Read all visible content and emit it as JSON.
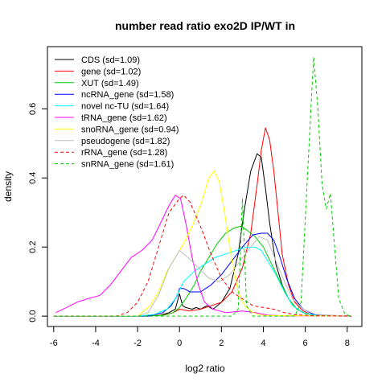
{
  "chart_data": {
    "type": "line",
    "title": "number read ratio exo2D IP/WT in",
    "xlabel": "log2 ratio",
    "ylabel": "density",
    "xlim": [
      -6.3,
      8.7
    ],
    "ylim": [
      -0.03,
      0.78
    ],
    "x_ticks": [
      -6,
      -4,
      -2,
      0,
      2,
      4,
      6,
      8
    ],
    "y_ticks": [
      0.0,
      0.2,
      0.4,
      0.6
    ],
    "x_tick_labels": [
      "-6",
      "-4",
      "-2",
      "0",
      "2",
      "4",
      "6",
      "8"
    ],
    "y_tick_labels": [
      "0.0",
      "0.2",
      "0.4",
      "0.6"
    ],
    "grid": false,
    "legend_position": "top-left",
    "series": [
      {
        "name": "CDS (sd=1.09)",
        "color": "#000000",
        "dash": "solid",
        "points": [
          [
            -6,
            0
          ],
          [
            -2,
            0
          ],
          [
            -1,
            0.002
          ],
          [
            -0.5,
            0.01
          ],
          [
            -0.2,
            0.02
          ],
          [
            0,
            0.065
          ],
          [
            0.15,
            0.03
          ],
          [
            0.3,
            0.025
          ],
          [
            0.6,
            0.02
          ],
          [
            0.8,
            0.025
          ],
          [
            1,
            0.02
          ],
          [
            1.3,
            0.03
          ],
          [
            1.6,
            0.02
          ],
          [
            2,
            0.04
          ],
          [
            2.4,
            0.08
          ],
          [
            2.8,
            0.18
          ],
          [
            3.1,
            0.31
          ],
          [
            3.4,
            0.42
          ],
          [
            3.7,
            0.47
          ],
          [
            3.9,
            0.46
          ],
          [
            4.1,
            0.37
          ],
          [
            4.3,
            0.27
          ],
          [
            4.6,
            0.15
          ],
          [
            4.9,
            0.09
          ],
          [
            5.2,
            0.05
          ],
          [
            5.6,
            0.02
          ],
          [
            6,
            0.008
          ],
          [
            6.5,
            0.002
          ],
          [
            8.2,
            0
          ]
        ]
      },
      {
        "name": "gene (sd=1.02)",
        "color": "#ff0000",
        "dash": "solid",
        "points": [
          [
            -6,
            0
          ],
          [
            -2,
            0
          ],
          [
            -0.8,
            0.003
          ],
          [
            -0.3,
            0.01
          ],
          [
            0,
            0.02
          ],
          [
            0.5,
            0.015
          ],
          [
            1,
            0.02
          ],
          [
            1.5,
            0.03
          ],
          [
            2,
            0.04
          ],
          [
            2.5,
            0.07
          ],
          [
            3,
            0.14
          ],
          [
            3.4,
            0.24
          ],
          [
            3.7,
            0.38
          ],
          [
            3.9,
            0.48
          ],
          [
            4.1,
            0.545
          ],
          [
            4.3,
            0.51
          ],
          [
            4.5,
            0.42
          ],
          [
            4.7,
            0.3
          ],
          [
            4.9,
            0.18
          ],
          [
            5.2,
            0.09
          ],
          [
            5.5,
            0.04
          ],
          [
            5.9,
            0.015
          ],
          [
            6.3,
            0.004
          ],
          [
            8.2,
            0
          ]
        ]
      },
      {
        "name": "XUT (sd=1.49)",
        "color": "#00cd00",
        "dash": "solid",
        "points": [
          [
            -6,
            0
          ],
          [
            -1.5,
            0
          ],
          [
            -0.7,
            0.003
          ],
          [
            -0.3,
            0.01
          ],
          [
            0,
            0.025
          ],
          [
            0.3,
            0.05
          ],
          [
            0.7,
            0.09
          ],
          [
            1,
            0.13
          ],
          [
            1.4,
            0.17
          ],
          [
            1.8,
            0.21
          ],
          [
            2.2,
            0.24
          ],
          [
            2.6,
            0.255
          ],
          [
            2.9,
            0.26
          ],
          [
            3.2,
            0.25
          ],
          [
            3.6,
            0.23
          ],
          [
            4,
            0.2
          ],
          [
            4.4,
            0.15
          ],
          [
            4.8,
            0.1
          ],
          [
            5.2,
            0.05
          ],
          [
            5.6,
            0.02
          ],
          [
            6,
            0.007
          ],
          [
            6.5,
            0.002
          ],
          [
            8.2,
            0
          ]
        ]
      },
      {
        "name": "ncRNA_gene (sd=1.58)",
        "color": "#0000ff",
        "dash": "solid",
        "points": [
          [
            -6,
            0
          ],
          [
            -1.5,
            0
          ],
          [
            -0.8,
            0.01
          ],
          [
            -0.4,
            0.03
          ],
          [
            -0.1,
            0.06
          ],
          [
            0,
            0.08
          ],
          [
            0.2,
            0.08
          ],
          [
            0.5,
            0.07
          ],
          [
            1,
            0.07
          ],
          [
            1.5,
            0.09
          ],
          [
            2,
            0.12
          ],
          [
            2.5,
            0.16
          ],
          [
            3,
            0.2
          ],
          [
            3.5,
            0.235
          ],
          [
            3.9,
            0.24
          ],
          [
            4.2,
            0.24
          ],
          [
            4.5,
            0.22
          ],
          [
            4.8,
            0.17
          ],
          [
            5.1,
            0.11
          ],
          [
            5.5,
            0.05
          ],
          [
            5.9,
            0.02
          ],
          [
            6.4,
            0.005
          ],
          [
            7,
            0.001
          ],
          [
            8.2,
            0
          ]
        ]
      },
      {
        "name": "novel nc-TU (sd=1.64)",
        "color": "#00ffff",
        "dash": "solid",
        "points": [
          [
            -6,
            0
          ],
          [
            -2,
            0
          ],
          [
            -1.2,
            0.005
          ],
          [
            -0.6,
            0.02
          ],
          [
            -0.2,
            0.05
          ],
          [
            0.2,
            0.1
          ],
          [
            0.7,
            0.13
          ],
          [
            1.2,
            0.15
          ],
          [
            1.7,
            0.17
          ],
          [
            2.2,
            0.18
          ],
          [
            2.7,
            0.19
          ],
          [
            3.2,
            0.2
          ],
          [
            3.6,
            0.2
          ],
          [
            3.9,
            0.19
          ],
          [
            4.2,
            0.16
          ],
          [
            4.6,
            0.12
          ],
          [
            5,
            0.07
          ],
          [
            5.4,
            0.03
          ],
          [
            5.9,
            0.01
          ],
          [
            6.5,
            0.002
          ],
          [
            8.2,
            0
          ]
        ]
      },
      {
        "name": "tRNA_gene (sd=1.62)",
        "color": "#ff00ff",
        "dash": "solid",
        "points": [
          [
            -5.9,
            0.01
          ],
          [
            -5.4,
            0.025
          ],
          [
            -4.9,
            0.04
          ],
          [
            -4.4,
            0.05
          ],
          [
            -3.8,
            0.06
          ],
          [
            -3.3,
            0.09
          ],
          [
            -2.8,
            0.13
          ],
          [
            -2.3,
            0.17
          ],
          [
            -1.8,
            0.19
          ],
          [
            -1.3,
            0.22
          ],
          [
            -0.9,
            0.27
          ],
          [
            -0.5,
            0.32
          ],
          [
            -0.2,
            0.35
          ],
          [
            0.05,
            0.34
          ],
          [
            0.3,
            0.27
          ],
          [
            0.6,
            0.17
          ],
          [
            0.9,
            0.09
          ],
          [
            1.2,
            0.04
          ],
          [
            1.6,
            0.02
          ],
          [
            2.2,
            0.01
          ],
          [
            3,
            0.015
          ],
          [
            3.6,
            0.01
          ],
          [
            4.2,
            0.003
          ],
          [
            5,
            0.001
          ],
          [
            8.2,
            0
          ]
        ]
      },
      {
        "name": "snoRNA_gene (sd=0.94)",
        "color": "#ffff00",
        "dash": "solid",
        "points": [
          [
            -6,
            0
          ],
          [
            -2,
            0
          ],
          [
            -1.4,
            0.03
          ],
          [
            -1,
            0.07
          ],
          [
            -0.6,
            0.13
          ],
          [
            -0.2,
            0.17
          ],
          [
            0.2,
            0.21
          ],
          [
            0.6,
            0.26
          ],
          [
            1,
            0.32
          ],
          [
            1.4,
            0.4
          ],
          [
            1.65,
            0.42
          ],
          [
            1.9,
            0.39
          ],
          [
            2.2,
            0.28
          ],
          [
            2.5,
            0.16
          ],
          [
            2.8,
            0.07
          ],
          [
            3.1,
            0.03
          ],
          [
            3.5,
            0.01
          ],
          [
            4,
            0.002
          ],
          [
            8.2,
            0
          ]
        ]
      },
      {
        "name": "pseudogene (sd=1.82)",
        "color": "#bebebe",
        "dash": "solid",
        "points": [
          [
            -6,
            0
          ],
          [
            -2,
            0
          ],
          [
            -1.5,
            0.01
          ],
          [
            -1,
            0.06
          ],
          [
            -0.5,
            0.14
          ],
          [
            0,
            0.19
          ],
          [
            0.4,
            0.17
          ],
          [
            0.9,
            0.14
          ],
          [
            1.4,
            0.11
          ],
          [
            1.9,
            0.1
          ],
          [
            2.4,
            0.12
          ],
          [
            2.9,
            0.16
          ],
          [
            3.4,
            0.2
          ],
          [
            3.8,
            0.23
          ],
          [
            4.2,
            0.22
          ],
          [
            4.6,
            0.16
          ],
          [
            5,
            0.1
          ],
          [
            5.4,
            0.05
          ],
          [
            5.9,
            0.02
          ],
          [
            6.5,
            0.005
          ],
          [
            8.2,
            0
          ]
        ]
      },
      {
        "name": "rRNA_gene (sd=1.28)",
        "color": "#ff0000",
        "dash": "dashed",
        "points": [
          [
            -6,
            0
          ],
          [
            -3,
            0
          ],
          [
            -2.5,
            0.01
          ],
          [
            -2,
            0.04
          ],
          [
            -1.5,
            0.1
          ],
          [
            -1,
            0.2
          ],
          [
            -0.5,
            0.3
          ],
          [
            0,
            0.34
          ],
          [
            0.2,
            0.35
          ],
          [
            0.5,
            0.33
          ],
          [
            1,
            0.26
          ],
          [
            1.5,
            0.18
          ],
          [
            2,
            0.11
          ],
          [
            2.5,
            0.07
          ],
          [
            3,
            0.05
          ],
          [
            3.5,
            0.03
          ],
          [
            4,
            0.025
          ],
          [
            4.5,
            0.02
          ],
          [
            5,
            0.01
          ],
          [
            5.5,
            0.004
          ],
          [
            6.5,
            0.001
          ],
          [
            8.2,
            0
          ]
        ]
      },
      {
        "name": "snRNA_gene (sd=1.61)",
        "color": "#00cd00",
        "dash": "dashed",
        "points": [
          [
            -6,
            0
          ],
          [
            2.5,
            0
          ],
          [
            2.8,
            0.02
          ],
          [
            3,
            0.34
          ],
          [
            3.2,
            0.03
          ],
          [
            3.5,
            0
          ],
          [
            5.5,
            0
          ],
          [
            5.8,
            0.04
          ],
          [
            6.1,
            0.4
          ],
          [
            6.4,
            0.75
          ],
          [
            6.6,
            0.6
          ],
          [
            6.8,
            0.38
          ],
          [
            7,
            0.31
          ],
          [
            7.2,
            0.355
          ],
          [
            7.4,
            0.2
          ],
          [
            7.6,
            0.05
          ],
          [
            7.9,
            0.005
          ],
          [
            8.2,
            0
          ]
        ]
      }
    ]
  }
}
